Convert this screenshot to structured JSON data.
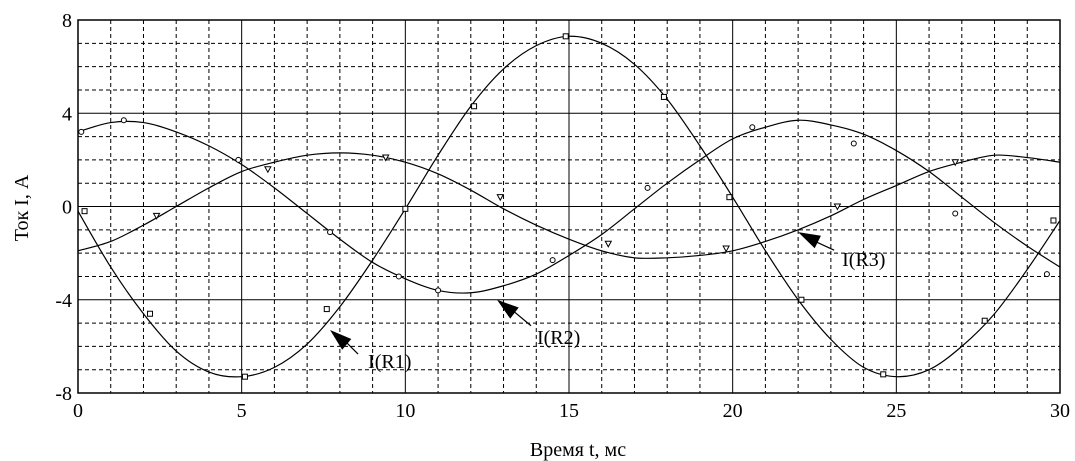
{
  "chart_data": {
    "type": "line",
    "xlabel": "Время t, мс",
    "ylabel": "Ток I, А",
    "xlim": [
      0,
      30
    ],
    "ylim": [
      -8,
      8
    ],
    "x_ticks": [
      "0",
      "5",
      "10",
      "15",
      "20",
      "25",
      "30"
    ],
    "y_ticks": [
      "8",
      "4",
      "0",
      "-4",
      "-8"
    ],
    "grid": true,
    "series": [
      {
        "name": "I(R1)",
        "marker": "square",
        "x": [
          0,
          1,
          2,
          3,
          4,
          5,
          6,
          7,
          8,
          9,
          10,
          11,
          12,
          13,
          14,
          15,
          16,
          17,
          18,
          19,
          20,
          21,
          22,
          23,
          24,
          25,
          26,
          27,
          28,
          29,
          30
        ],
        "y": [
          -0.2,
          -2.6,
          -4.6,
          -6.2,
          -7.1,
          -7.3,
          -6.9,
          -5.9,
          -4.3,
          -2.3,
          -0.1,
          2.2,
          4.3,
          5.9,
          6.9,
          7.3,
          7.0,
          6.1,
          4.6,
          2.6,
          0.4,
          -1.9,
          -4.0,
          -5.7,
          -6.9,
          -7.3,
          -7.0,
          -6.0,
          -4.6,
          -2.7,
          -0.6
        ],
        "markers_x": [
          0.2,
          2.2,
          5.1,
          7.6,
          10.0,
          12.1,
          14.9,
          17.9,
          19.9,
          22.1,
          24.6,
          27.7,
          29.8
        ],
        "markers_y": [
          -0.2,
          -4.6,
          -7.3,
          -4.4,
          -0.1,
          4.3,
          7.3,
          4.7,
          0.4,
          -4.0,
          -7.2,
          -4.9,
          -0.6
        ],
        "annotation": {
          "label": "I(R1)",
          "at": [
            7.7,
            -5.3
          ]
        }
      },
      {
        "name": "I(R2)",
        "marker": "circle",
        "x": [
          0,
          1,
          2,
          3,
          4,
          5,
          6,
          7,
          8,
          9,
          10,
          11,
          12,
          13,
          14,
          15,
          16,
          17,
          18,
          19,
          20,
          21,
          22,
          23,
          24,
          25,
          26,
          27,
          28,
          29,
          30
        ],
        "y": [
          3.2,
          3.6,
          3.6,
          3.2,
          2.6,
          1.8,
          0.8,
          -0.3,
          -1.4,
          -2.4,
          -3.1,
          -3.6,
          -3.7,
          -3.4,
          -2.9,
          -2.1,
          -1.2,
          -0.1,
          1.0,
          2.0,
          2.9,
          3.4,
          3.7,
          3.5,
          3.1,
          2.4,
          1.5,
          0.4,
          -0.7,
          -1.7,
          -2.6
        ],
        "markers_x": [
          0.1,
          1.4,
          4.9,
          7.7,
          9.8,
          11.0,
          14.5,
          17.4,
          20.6,
          23.7,
          26.8,
          29.6
        ],
        "markers_y": [
          3.2,
          3.7,
          2.0,
          -1.1,
          -3.0,
          -3.6,
          -2.3,
          0.8,
          3.4,
          2.7,
          -0.3,
          -2.9
        ],
        "annotation": {
          "label": "I(R2)",
          "at": [
            12.8,
            -4.0
          ]
        }
      },
      {
        "name": "I(R3)",
        "marker": "triangle",
        "x": [
          0,
          1,
          2,
          3,
          4,
          5,
          6,
          7,
          8,
          9,
          10,
          11,
          12,
          13,
          14,
          15,
          16,
          17,
          18,
          19,
          20,
          21,
          22,
          23,
          24,
          25,
          26,
          27,
          28,
          29,
          30
        ],
        "y": [
          -1.9,
          -1.5,
          -0.8,
          0.0,
          0.8,
          1.5,
          1.9,
          2.2,
          2.3,
          2.2,
          1.9,
          1.4,
          0.7,
          -0.1,
          -0.8,
          -1.4,
          -1.9,
          -2.2,
          -2.2,
          -2.1,
          -1.9,
          -1.5,
          -1.0,
          -0.4,
          0.3,
          0.9,
          1.5,
          1.9,
          2.2,
          2.1,
          1.9
        ],
        "markers_x": [
          2.4,
          5.8,
          9.4,
          12.9,
          16.2,
          19.8,
          23.2,
          26.8
        ],
        "markers_y": [
          -0.4,
          1.6,
          2.1,
          0.4,
          -1.6,
          -1.8,
          0.0,
          1.9
        ],
        "annotation": {
          "label": "I(R3)",
          "at": [
            22.0,
            -1.1
          ]
        }
      }
    ]
  }
}
